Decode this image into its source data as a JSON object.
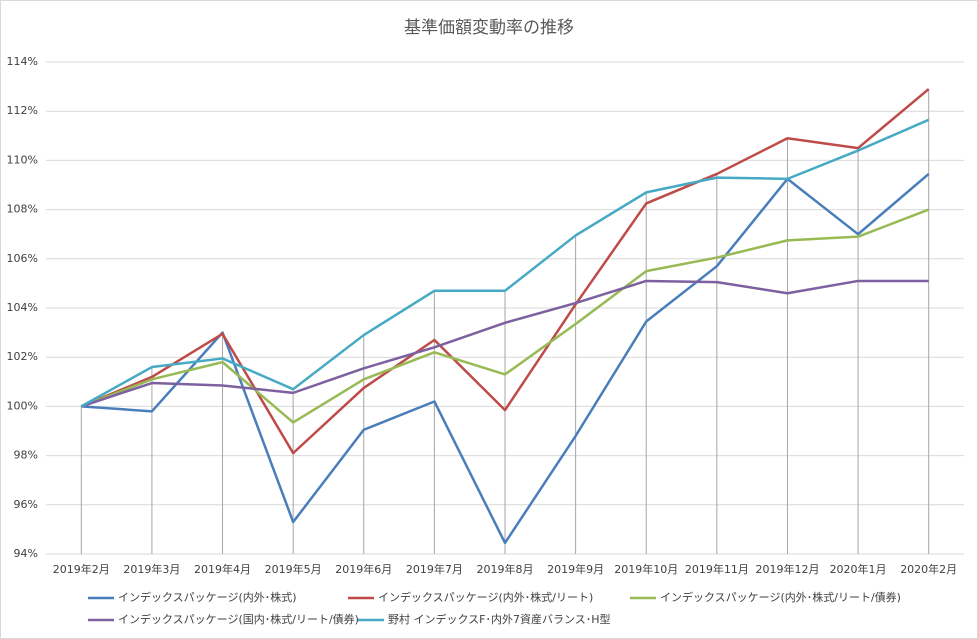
{
  "chart_data": {
    "type": "line",
    "title": "基準価額変動率の推移",
    "categories": [
      "2019年2月",
      "2019年3月",
      "2019年4月",
      "2019年5月",
      "2019年6月",
      "2019年7月",
      "2019年8月",
      "2019年9月",
      "2019年10月",
      "2019年11月",
      "2019年12月",
      "2020年1月",
      "2020年2月"
    ],
    "series": [
      {
        "name": "インデックスパッケージ(内外･株式)",
        "color": "#4a7ebb",
        "values": [
          100,
          99.8,
          103.0,
          95.3,
          99.05,
          100.2,
          94.45,
          98.8,
          103.45,
          105.7,
          109.25,
          107.0,
          109.45
        ]
      },
      {
        "name": "インデックスパッケージ(内外･株式/リート)",
        "color": "#be4b48",
        "values": [
          100,
          101.2,
          102.95,
          98.1,
          100.75,
          102.7,
          99.85,
          104.15,
          108.25,
          109.45,
          110.9,
          110.5,
          112.9
        ]
      },
      {
        "name": "インデックスパッケージ(内外･株式/リート/債券)",
        "color": "#98b954",
        "values": [
          100,
          101.1,
          101.8,
          99.35,
          101.1,
          102.2,
          101.3,
          103.35,
          105.5,
          106.05,
          106.75,
          106.9,
          108.0
        ]
      },
      {
        "name": "インデックスパッケージ(国内･株式/リート/債券)",
        "color": "#7d60a0",
        "values": [
          100,
          100.95,
          100.85,
          100.55,
          101.55,
          102.4,
          103.4,
          104.2,
          105.1,
          105.05,
          104.6,
          105.1,
          105.1
        ]
      },
      {
        "name": "野村 インデックスF･内外7資産バランス･H型",
        "color": "#46aac5",
        "values": [
          100,
          101.6,
          101.95,
          100.7,
          102.9,
          104.7,
          104.7,
          106.95,
          108.7,
          109.3,
          109.25,
          110.4,
          111.65
        ]
      }
    ],
    "ylim": [
      94,
      114
    ],
    "yticks": [
      {
        "value": 94,
        "label": "94%"
      },
      {
        "value": 96,
        "label": "96%"
      },
      {
        "value": 98,
        "label": "98%"
      },
      {
        "value": 100,
        "label": "100%"
      },
      {
        "value": 102,
        "label": "102%"
      },
      {
        "value": 104,
        "label": "104%"
      },
      {
        "value": 106,
        "label": "106%"
      },
      {
        "value": 108,
        "label": "108%"
      },
      {
        "value": 110,
        "label": "110%"
      },
      {
        "value": 112,
        "label": "112%"
      },
      {
        "value": 114,
        "label": "114%"
      }
    ],
    "grid": true
  }
}
